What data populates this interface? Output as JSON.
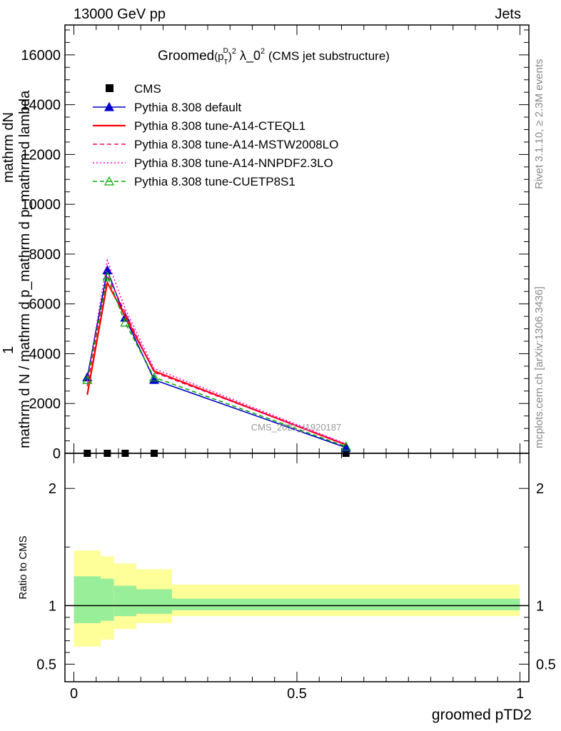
{
  "header": {
    "left": "13000 GeV pp",
    "right": "Jets"
  },
  "side": {
    "rivet": "Rivet 3.1.10, ≥ 2.3M events",
    "mcplots": "mcplots.cern.ch [arXiv:1306.3436]"
  },
  "ylabel_top": {
    "numerator": "mathrm dN",
    "fraction_one": "1",
    "denominator": "mathrm d N / mathrm d p_mathrm d p_mathrm d lambda"
  },
  "title_parts": {
    "pre": "Groomed",
    "post": " (CMS jet substructure)"
  },
  "watermark": "CMS_2021_I1920187",
  "chart_data": [
    {
      "type": "line",
      "panel": "main",
      "xlim": [
        -0.02,
        1.02
      ],
      "ylim": [
        0,
        17200
      ],
      "yticks": [
        0,
        2000,
        4000,
        6000,
        8000,
        10000,
        12000,
        14000,
        16000
      ],
      "ytick_labels": [
        "0",
        "2000",
        "4000",
        "6000",
        "8000",
        "10000",
        "12000",
        "14000",
        "16000"
      ],
      "legend_position": "top-left",
      "series": [
        {
          "name": "CMS",
          "color": "#000000",
          "style": "marker-square",
          "x": [
            0.03,
            0.075,
            0.115,
            0.18,
            0.61
          ],
          "y": [
            0,
            0,
            0,
            0,
            0
          ]
        },
        {
          "name": "Pythia 8.308 default",
          "color": "#0000cc",
          "style": "solid-triangle",
          "x": [
            0.03,
            0.075,
            0.115,
            0.18,
            0.61
          ],
          "y": [
            3050,
            7350,
            5450,
            2950,
            230
          ]
        },
        {
          "name": "Pythia 8.308 tune-A14-CTEQL1",
          "color": "#ff0000",
          "style": "solid",
          "x": [
            0.03,
            0.075,
            0.115,
            0.18,
            0.61
          ],
          "y": [
            2350,
            6850,
            5500,
            3300,
            340
          ]
        },
        {
          "name": "Pythia 8.308 tune-A14-MSTW2008LO",
          "color": "#ff0066",
          "style": "dashed",
          "x": [
            0.03,
            0.075,
            0.115,
            0.18,
            0.61
          ],
          "y": [
            2700,
            7150,
            5650,
            3250,
            360
          ]
        },
        {
          "name": "Pythia 8.308 tune-A14-NNPDF2.3LO",
          "color": "#ff00cc",
          "style": "dotted",
          "x": [
            0.03,
            0.075,
            0.115,
            0.18,
            0.61
          ],
          "y": [
            2900,
            7750,
            5800,
            3400,
            380
          ]
        },
        {
          "name": "Pythia 8.308 tune-CUETP8S1",
          "color": "#00aa00",
          "style": "dashed-open-triangle",
          "x": [
            0.03,
            0.075,
            0.115,
            0.18,
            0.61
          ],
          "y": [
            2950,
            7100,
            5250,
            3050,
            270
          ]
        }
      ]
    },
    {
      "type": "area",
      "panel": "ratio",
      "ylabel": "Ratio to CMS",
      "xlabel": "groomed pTD2",
      "xlim": [
        -0.02,
        1.02
      ],
      "ylim": [
        0.35,
        2.3
      ],
      "xticks": [
        0,
        0.5,
        1
      ],
      "xtick_labels": [
        "0",
        "0.5",
        "1"
      ],
      "yticks": [
        0.5,
        1,
        2
      ],
      "ytick_labels": [
        "0.5",
        "1",
        "2"
      ],
      "bins": [
        {
          "lo": 0.0,
          "hi": 0.06,
          "stat": [
            0.85,
            1.25
          ],
          "total": [
            0.65,
            1.47
          ]
        },
        {
          "lo": 0.06,
          "hi": 0.09,
          "stat": [
            0.87,
            1.23
          ],
          "total": [
            0.71,
            1.42
          ]
        },
        {
          "lo": 0.09,
          "hi": 0.14,
          "stat": [
            0.91,
            1.17
          ],
          "total": [
            0.8,
            1.36
          ]
        },
        {
          "lo": 0.14,
          "hi": 0.22,
          "stat": [
            0.93,
            1.14
          ],
          "total": [
            0.85,
            1.31
          ]
        },
        {
          "lo": 0.22,
          "hi": 1.0,
          "stat": [
            0.96,
            1.06
          ],
          "total": [
            0.91,
            1.18
          ]
        }
      ],
      "reference_line": 1,
      "stat_color": "#99ee99",
      "total_color": "#ffff99"
    }
  ]
}
